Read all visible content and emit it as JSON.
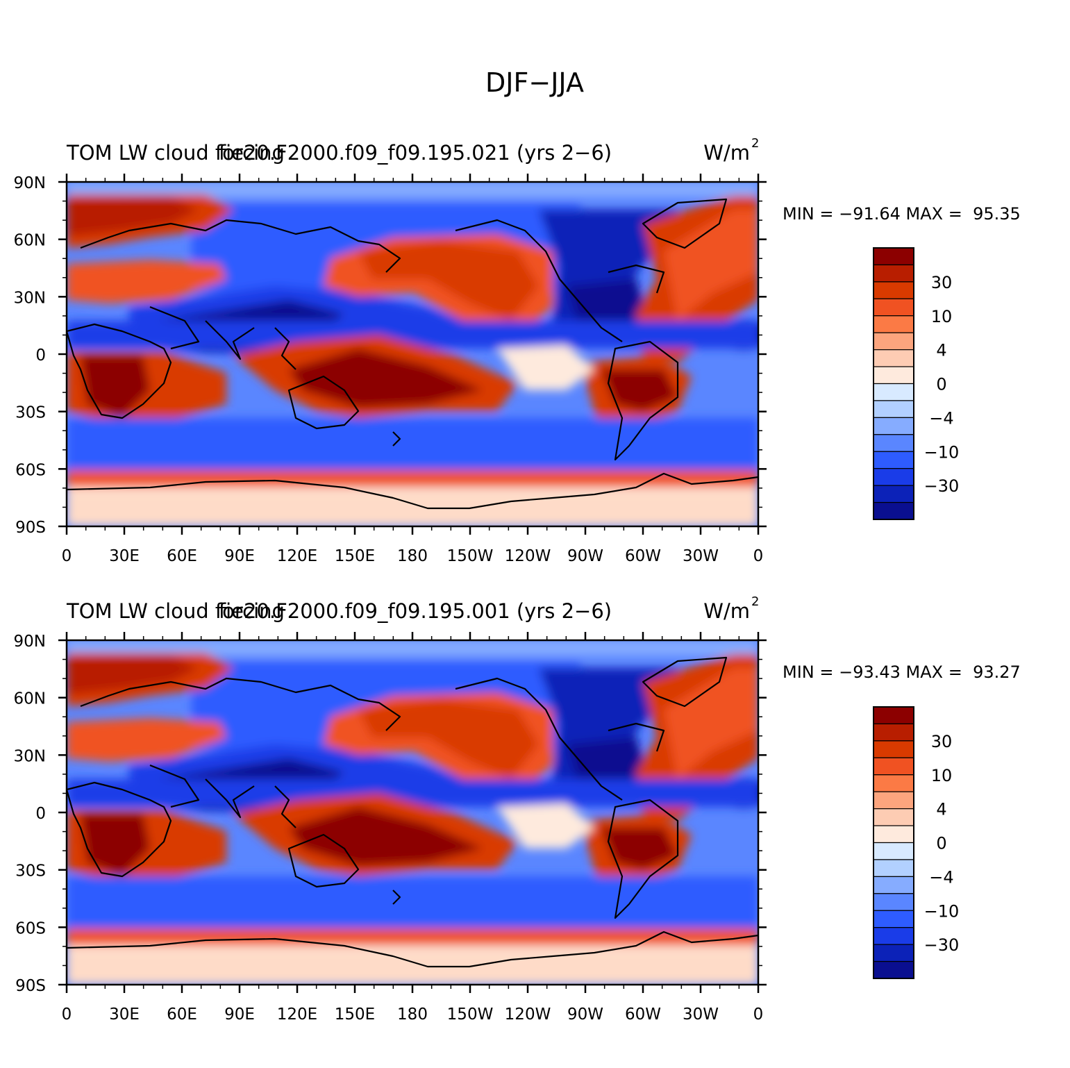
{
  "page_title": "DJF−JJA",
  "colorbar": {
    "labels": [
      "30",
      "10",
      "4",
      "0",
      "−4",
      "−10",
      "−30"
    ],
    "colors": [
      "#8c0000",
      "#b81e00",
      "#d93a00",
      "#f05222",
      "#fb7a45",
      "#fca57e",
      "#fdccb3",
      "#feeadd",
      "#d8eaff",
      "#b2d0ff",
      "#86acff",
      "#5a86ff",
      "#2e5cff",
      "#1a3ce8",
      "#0c22b8",
      "#0a0f90"
    ]
  },
  "axes": {
    "lat_labels": [
      "90N",
      "60N",
      "30N",
      "0",
      "30S",
      "60S",
      "90S"
    ],
    "lon_labels": [
      "0",
      "30E",
      "60E",
      "90E",
      "120E",
      "150E",
      "180",
      "150W",
      "120W",
      "90W",
      "60W",
      "30W",
      "0"
    ]
  },
  "panels": [
    {
      "left_title": "TOM LW cloud forcing",
      "center_title": "fie20.F2000.f09_f09.195.021 (yrs 2−6)",
      "units": "W/m",
      "units_exp": "2",
      "stats": "MIN = −91.64 MAX =  95.35"
    },
    {
      "left_title": "TOM LW cloud forcing",
      "center_title": "fie20.F2000.f09_f09.195.001 (yrs 2−6)",
      "units": "W/m",
      "units_exp": "2",
      "stats": "MIN = −93.43 MAX =  93.27"
    }
  ]
}
